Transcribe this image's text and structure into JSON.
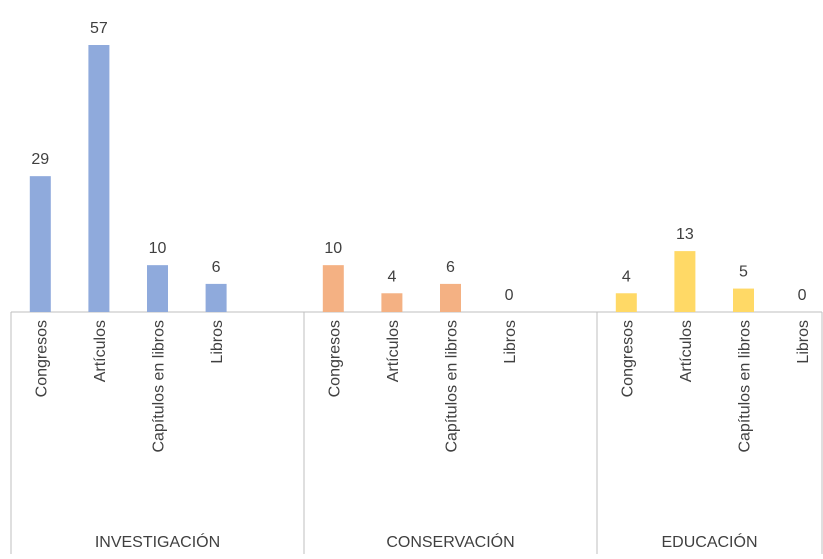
{
  "chart_data": {
    "type": "bar",
    "groups": [
      {
        "name": "INVESTIGACIÓN",
        "color": "#8faadc",
        "categories": [
          "Congresos",
          "Artículos",
          "Capítulos en libros",
          "Libros"
        ],
        "values": [
          29,
          57,
          10,
          6
        ]
      },
      {
        "name": "CONSERVACIÓN",
        "color": "#f4b183",
        "categories": [
          "Congresos",
          "Artículos",
          "Capítulos en libros",
          "Libros"
        ],
        "values": [
          10,
          4,
          6,
          0
        ]
      },
      {
        "name": "EDUCACIÓN",
        "color": "#ffd966",
        "categories": [
          "Congresos",
          "Artículos",
          "Capítulos en libros",
          "Libros"
        ],
        "values": [
          4,
          13,
          5,
          0
        ]
      }
    ]
  }
}
